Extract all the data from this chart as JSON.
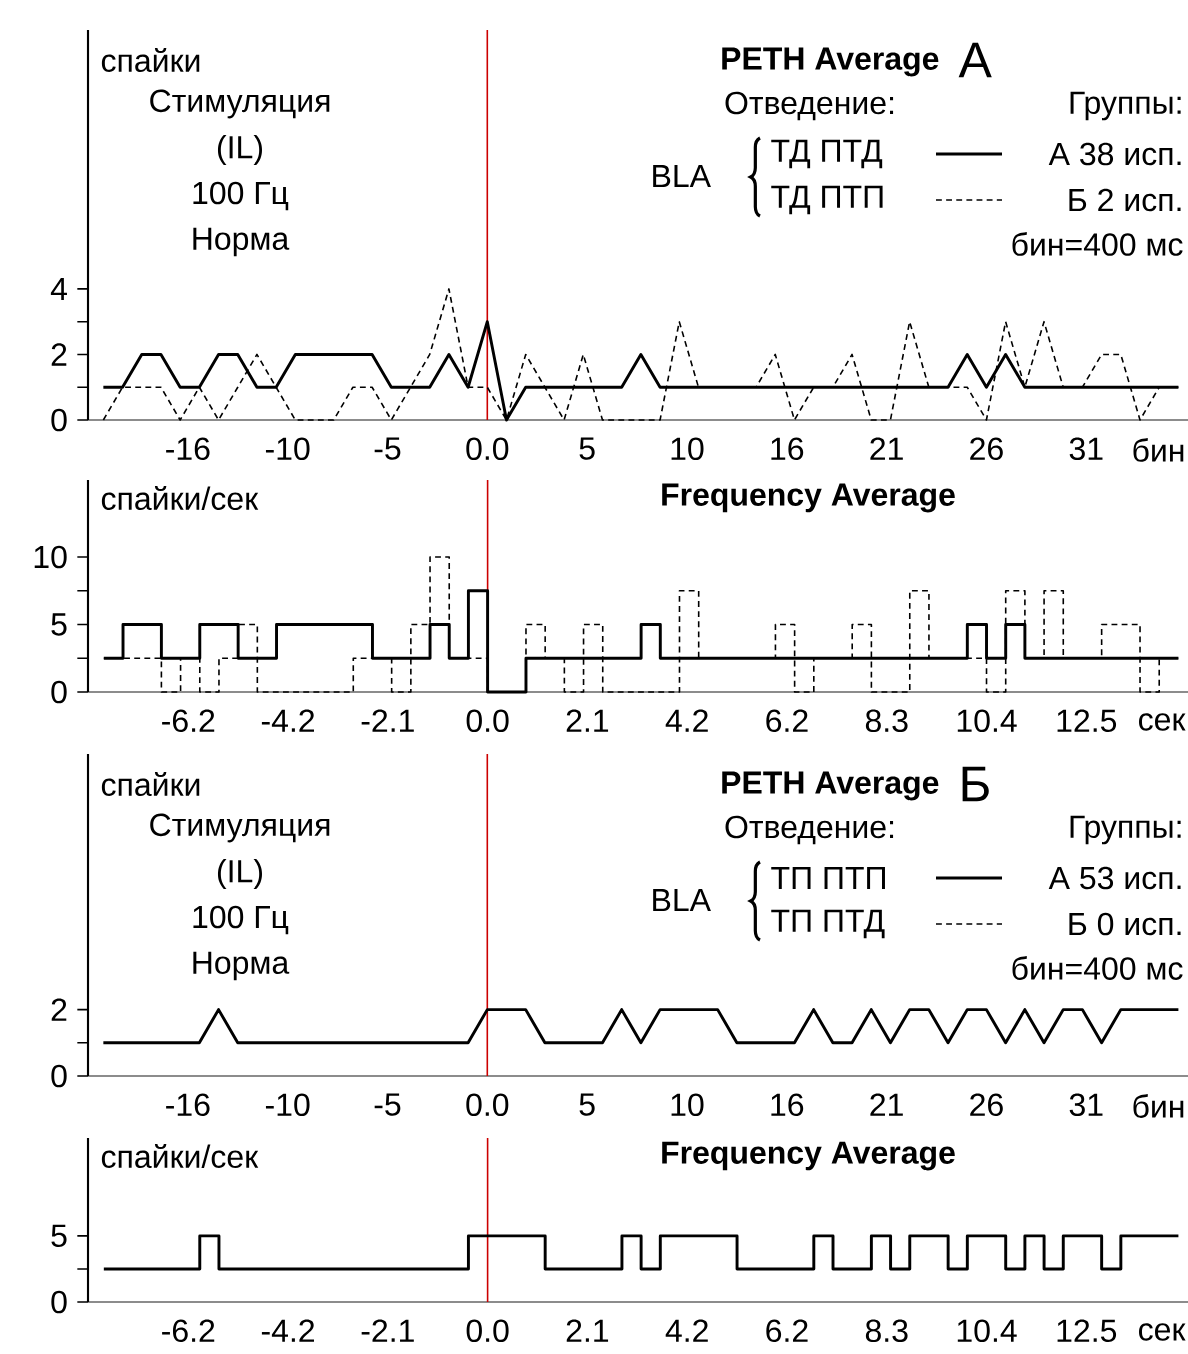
{
  "chart_data": [
    {
      "type": "line",
      "title": "PETH Average",
      "subtitle": "А",
      "ylabel": "спайки",
      "xlabel": "бин",
      "legend_title": "Отведение:",
      "legend": "top right",
      "annotations": [
        "Стимуляция",
        "(IL)",
        "100 Гц",
        "Норма",
        "Группы:",
        "BLA",
        "А 38 исп.",
        "Б 2 исп.",
        "бин=400 мс"
      ],
      "x": [
        -20,
        -19,
        -18,
        -17,
        -16,
        -15,
        -14,
        -13,
        -12,
        -11,
        -10,
        -9,
        -8,
        -7,
        -6,
        -5,
        -4,
        -3,
        -2,
        -1,
        0,
        1,
        2,
        3,
        4,
        5,
        6,
        7,
        8,
        9,
        10,
        11,
        12,
        13,
        14,
        15,
        16,
        17,
        18,
        19,
        20,
        21,
        22,
        23,
        24,
        25,
        26,
        27,
        28,
        29,
        30,
        31,
        32,
        33,
        34,
        35,
        36
      ],
      "series": [
        {
          "name": "ТД ПТД",
          "color": "#000000",
          "line_style": "solid",
          "values": [
            1,
            1,
            2,
            2,
            1,
            1,
            2,
            2,
            1,
            1,
            2,
            2,
            2,
            2,
            2,
            1,
            1,
            1,
            2,
            1,
            3,
            0,
            1,
            1,
            1,
            1,
            1,
            1,
            2,
            1,
            1,
            1,
            1,
            1,
            1,
            1,
            1,
            1,
            1,
            1,
            1,
            1,
            1,
            1,
            1,
            2,
            1,
            2,
            1,
            1,
            1,
            1,
            1,
            1,
            1,
            1,
            1
          ]
        },
        {
          "name": "ТД ПТП",
          "color": "#000000",
          "line_style": "dashed",
          "values": [
            0,
            1,
            1,
            1,
            0,
            1,
            0,
            1,
            2,
            1,
            0,
            0,
            0,
            1,
            1,
            0,
            1,
            2,
            4,
            1,
            1,
            0,
            2,
            1,
            0,
            2,
            0,
            0,
            0,
            0,
            3,
            1,
            1,
            1,
            1,
            2,
            0,
            1,
            1,
            2,
            0,
            0,
            3,
            1,
            1,
            1,
            0,
            3,
            1,
            3,
            1,
            1,
            2,
            2,
            0,
            1,
            1
          ]
        }
      ],
      "xlim": [
        -20.8,
        36.5
      ],
      "ylim": [
        0,
        11.9
      ],
      "xticks": [
        {
          "value": -15.6,
          "label": "-16"
        },
        {
          "value": -10.4,
          "label": "-10"
        },
        {
          "value": -5.2,
          "label": "-5"
        },
        {
          "value": 0,
          "label": "0.0"
        },
        {
          "value": 5.2,
          "label": "5"
        },
        {
          "value": 10.4,
          "label": "10"
        },
        {
          "value": 15.6,
          "label": "16"
        },
        {
          "value": 20.8,
          "label": "21"
        },
        26,
        {
          "value": 31.2,
          "label": "31"
        }
      ],
      "yticks": [
        0,
        {
          "value": 1,
          "label": null
        },
        2,
        {
          "value": 3,
          "label": null
        },
        4
      ],
      "ref_lines": [
        {
          "axis": "x",
          "value": 0,
          "color": "#cc0000"
        }
      ]
    },
    {
      "type": "step",
      "title": "Frequency Average",
      "ylabel": "спайки/сек",
      "xlabel": "сек",
      "series": [
        {
          "color": "#000000",
          "line_style": "solid",
          "x": [
            -8,
            -7.6,
            -6.8,
            -6.0,
            -5.2,
            -4.4,
            -2.4,
            -1.2,
            -0.8,
            -0.4,
            0,
            0.8,
            3.2,
            3.6,
            10.0,
            10.4,
            10.8,
            11.2,
            14.4
          ],
          "values": [
            2.5,
            5,
            2.5,
            5,
            2.5,
            5,
            2.5,
            5,
            2.5,
            7.5,
            0,
            2.5,
            5,
            2.5,
            5,
            2.5,
            5,
            2.5,
            2.5
          ]
        },
        {
          "color": "#000000",
          "line_style": "dashed",
          "x": [
            -8,
            -6.8,
            -6.4,
            -6.0,
            -5.6,
            -5.2,
            -4.8,
            -2.8,
            -2.0,
            -1.6,
            -1.2,
            -0.8,
            0,
            0.8,
            1.2,
            1.6,
            2.0,
            2.4,
            4.0,
            4.4,
            6.0,
            6.4,
            6.8,
            7.6,
            8.0,
            8.8,
            9.2,
            10.4,
            10.8,
            11.2,
            11.6,
            12.0,
            12.8,
            13.6,
            14.0,
            14.4
          ],
          "values": [
            2.5,
            0,
            2.5,
            0,
            2.5,
            5,
            0,
            2.5,
            0,
            5,
            10,
            2.5,
            0,
            5,
            2.5,
            0,
            5,
            0,
            7.5,
            2.5,
            5,
            0,
            2.5,
            5,
            0,
            7.5,
            2.5,
            0,
            7.5,
            2.5,
            7.5,
            2.5,
            5,
            0,
            2.5,
            2.5
          ]
        }
      ],
      "xlim": [
        -8.33,
        14.6
      ],
      "ylim": [
        0,
        15.7
      ],
      "xticks": [
        {
          "value": -6.24,
          "label": "-6.2"
        },
        {
          "value": -4.16,
          "label": "-4.2"
        },
        {
          "value": -2.08,
          "label": "-2.1"
        },
        {
          "value": 0,
          "label": "0.0"
        },
        {
          "value": 2.08,
          "label": "2.1"
        },
        {
          "value": 4.16,
          "label": "4.2"
        },
        {
          "value": 6.24,
          "label": "6.2"
        },
        {
          "value": 8.32,
          "label": "8.3"
        },
        10.4,
        {
          "value": 12.48,
          "label": "12.5"
        }
      ],
      "yticks": [
        0,
        {
          "value": 2.5,
          "label": null
        },
        5,
        {
          "value": 7.5,
          "label": null
        },
        10
      ],
      "ref_lines": [
        {
          "axis": "x",
          "value": 0,
          "color": "#cc0000"
        }
      ]
    },
    {
      "type": "line",
      "title": "PETH Average",
      "subtitle": "Б",
      "ylabel": "спайки",
      "xlabel": "бин",
      "legend_title": "Отведение:",
      "legend": "top right",
      "annotations": [
        "Стимуляция",
        "(IL)",
        "100 Гц",
        "Норма",
        "Группы:",
        "BLA",
        "А 53 исп.",
        "Б 0 исп.",
        "бин=400 мс"
      ],
      "x": [
        -20,
        -19,
        -18,
        -17,
        -16,
        -15,
        -14,
        -13,
        -12,
        -11,
        -10,
        -9,
        -8,
        -7,
        -6,
        -5,
        -4,
        -3,
        -2,
        -1,
        0,
        1,
        2,
        3,
        4,
        5,
        6,
        7,
        8,
        9,
        10,
        11,
        12,
        13,
        14,
        15,
        16,
        17,
        18,
        19,
        20,
        21,
        22,
        23,
        24,
        25,
        26,
        27,
        28,
        29,
        30,
        31,
        32,
        33,
        34,
        35,
        36
      ],
      "series": [
        {
          "name": "ТП ПТП",
          "color": "#000000",
          "line_style": "solid",
          "values": [
            1,
            1,
            1,
            1,
            1,
            1,
            2,
            1,
            1,
            1,
            1,
            1,
            1,
            1,
            1,
            1,
            1,
            1,
            1,
            1,
            2,
            2,
            2,
            1,
            1,
            1,
            1,
            2,
            1,
            2,
            2,
            2,
            2,
            1,
            1,
            1,
            1,
            2,
            1,
            1,
            2,
            1,
            2,
            2,
            1,
            2,
            2,
            1,
            2,
            1,
            2,
            2,
            1,
            2,
            2,
            2,
            2
          ]
        },
        {
          "name": "ТП ПТД",
          "color": "#000000",
          "line_style": "dashed",
          "values": [
            null,
            null,
            null,
            null,
            null,
            null,
            null,
            null,
            null,
            null,
            null,
            null,
            null,
            null,
            null,
            null,
            null,
            null,
            null,
            null,
            null,
            null,
            null,
            null,
            null,
            null,
            null,
            null,
            null,
            null,
            null,
            null,
            null,
            null,
            null,
            null,
            null,
            null,
            null,
            null,
            null,
            null,
            null,
            null,
            null,
            null,
            null,
            null,
            null,
            null,
            null,
            null,
            null,
            null,
            null,
            null,
            null
          ]
        }
      ],
      "xlim": [
        -20.8,
        36.5
      ],
      "ylim": [
        0,
        9.7
      ],
      "xticks": [
        {
          "value": -15.6,
          "label": "-16"
        },
        {
          "value": -10.4,
          "label": "-10"
        },
        {
          "value": -5.2,
          "label": "-5"
        },
        {
          "value": 0,
          "label": "0.0"
        },
        {
          "value": 5.2,
          "label": "5"
        },
        {
          "value": 10.4,
          "label": "10"
        },
        {
          "value": 15.6,
          "label": "16"
        },
        {
          "value": 20.8,
          "label": "21"
        },
        26,
        {
          "value": 31.2,
          "label": "31"
        }
      ],
      "yticks": [
        0,
        {
          "value": 1,
          "label": null
        },
        2
      ],
      "ref_lines": [
        {
          "axis": "x",
          "value": 0,
          "color": "#cc0000"
        }
      ]
    },
    {
      "type": "step",
      "title": "Frequency Average",
      "ylabel": "спайки/сек",
      "xlabel": "сек",
      "series": [
        {
          "color": "#000000",
          "line_style": "solid",
          "x": [
            -8,
            -6.0,
            -5.6,
            -0.4,
            1.2,
            2.8,
            3.2,
            3.6,
            5.2,
            6.8,
            7.2,
            8.0,
            8.4,
            8.8,
            9.6,
            10.0,
            10.8,
            11.2,
            11.6,
            12.0,
            12.8,
            13.2,
            14.4
          ],
          "values": [
            2.5,
            5,
            2.5,
            5,
            2.5,
            5,
            2.5,
            5,
            2.5,
            5,
            2.5,
            5,
            2.5,
            5,
            2.5,
            5,
            2.5,
            5,
            2.5,
            5,
            2.5,
            5,
            5
          ]
        }
      ],
      "xlim": [
        -8.33,
        14.6
      ],
      "ylim": [
        0,
        12.4
      ],
      "xticks": [
        {
          "value": -6.24,
          "label": "-6.2"
        },
        {
          "value": -4.16,
          "label": "-4.2"
        },
        {
          "value": -2.08,
          "label": "-2.1"
        },
        {
          "value": 0,
          "label": "0.0"
        },
        {
          "value": 2.08,
          "label": "2.1"
        },
        {
          "value": 4.16,
          "label": "4.2"
        },
        {
          "value": 6.24,
          "label": "6.2"
        },
        {
          "value": 8.32,
          "label": "8.3"
        },
        10.4,
        {
          "value": 12.48,
          "label": "12.5"
        }
      ],
      "yticks": [
        0,
        {
          "value": 2.5,
          "label": null
        },
        5
      ],
      "ref_lines": [
        {
          "axis": "x",
          "value": 0,
          "color": "#cc0000"
        }
      ]
    }
  ]
}
